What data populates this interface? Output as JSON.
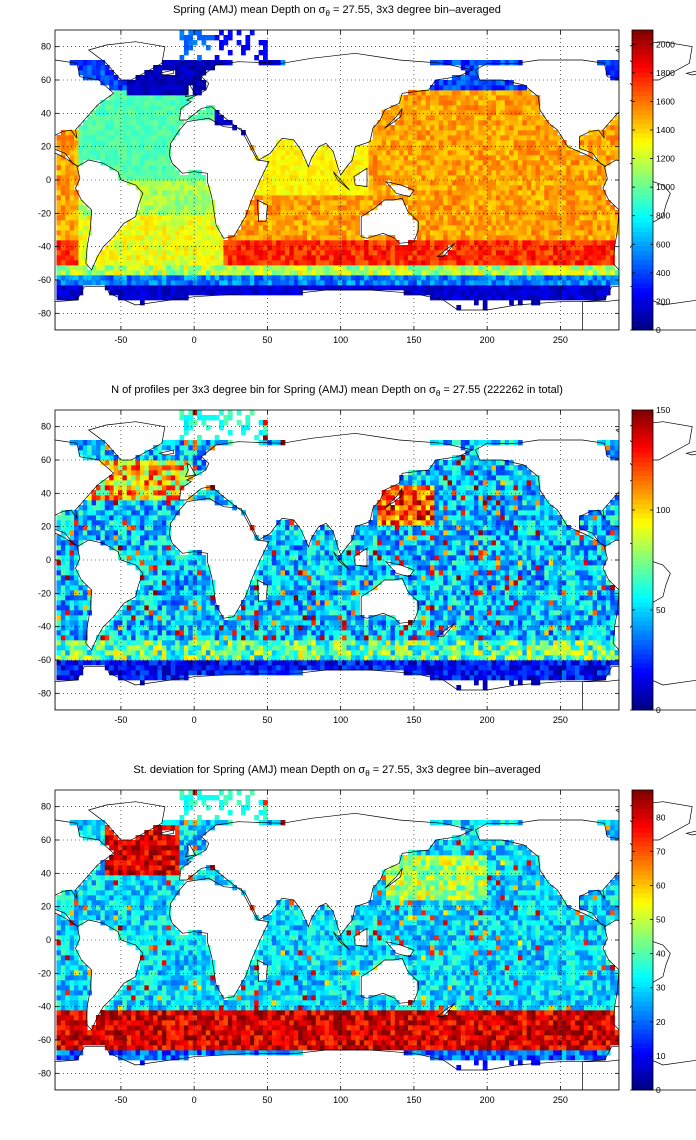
{
  "panels": [
    {
      "title_pre": "Spring (AMJ) mean Depth on σ",
      "title_sub": "θ",
      "title_post": " = 27.55, 3x3 degree bin–averaged",
      "colorbar": {
        "min": 0,
        "max": 2100,
        "ticks": [
          0,
          200,
          400,
          600,
          800,
          1000,
          1200,
          1400,
          1600,
          1800,
          2000
        ]
      },
      "field": "depth"
    },
    {
      "title_pre": "N of profiles per 3x3 degree bin for Spring (AMJ) mean Depth on σ",
      "title_sub": "θ",
      "title_post": " = 27.55 (222262 in total)",
      "colorbar": {
        "min": 0,
        "max": 150,
        "ticks": [
          0,
          50,
          100,
          150
        ]
      },
      "field": "count"
    },
    {
      "title_pre": "St. deviation for Spring (AMJ) mean Depth on σ",
      "title_sub": "θ",
      "title_post": " = 27.55, 3x3 degree bin–averaged",
      "colorbar": {
        "min": 0,
        "max": 88,
        "ticks": [
          0,
          10,
          20,
          30,
          40,
          50,
          60,
          70,
          80
        ]
      },
      "field": "std"
    }
  ],
  "axes": {
    "x_range": [
      -95,
      290
    ],
    "y_range": [
      -90,
      90
    ],
    "x_ticks": [
      -50,
      0,
      50,
      100,
      150,
      200,
      250
    ],
    "y_ticks": [
      -80,
      -60,
      -40,
      -20,
      0,
      20,
      40,
      60,
      80
    ],
    "grid": true,
    "colormap": "jet"
  }
}
